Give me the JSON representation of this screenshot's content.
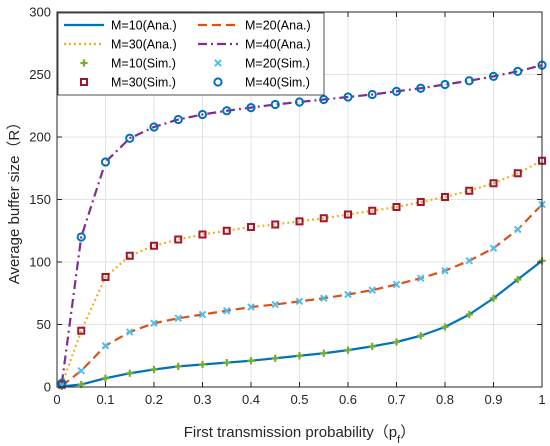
{
  "chart_data": {
    "type": "line",
    "title": "",
    "xlabel": "First transmission probability（p",
    "xlabel_sub": "f",
    "xlabel_close": "）",
    "ylabel": "Average buffer size（R）",
    "xlim": [
      0,
      1
    ],
    "ylim": [
      0,
      300
    ],
    "xticks": [
      "0",
      "0.1",
      "0.2",
      "0.3",
      "0.4",
      "0.5",
      "0.6",
      "0.7",
      "0.8",
      "0.9",
      "1"
    ],
    "yticks": [
      "0",
      "50",
      "100",
      "150",
      "200",
      "250",
      "300"
    ],
    "grid": true,
    "legend_position": "top-left",
    "x": [
      0.01,
      0.05,
      0.1,
      0.15,
      0.2,
      0.25,
      0.3,
      0.35,
      0.4,
      0.45,
      0.5,
      0.55,
      0.6,
      0.65,
      0.7,
      0.75,
      0.8,
      0.85,
      0.9,
      0.95,
      1.0
    ],
    "series": [
      {
        "name": "M=10(Ana.)",
        "kind": "line",
        "style": "solid",
        "color": "#0072BD",
        "values": [
          0.5,
          2,
          7,
          11,
          14,
          16.5,
          18,
          19.5,
          21,
          23,
          25,
          27,
          29.5,
          32.5,
          36,
          41,
          48,
          58,
          71,
          86,
          101
        ]
      },
      {
        "name": "M=20(Ana.)",
        "kind": "line",
        "style": "dashed",
        "color": "#D95319",
        "values": [
          1,
          13,
          33,
          44,
          51,
          55,
          58,
          61,
          64,
          66,
          68.5,
          71,
          74,
          77.5,
          82,
          87,
          93,
          101,
          111,
          126,
          146
        ]
      },
      {
        "name": "M=30(Ana.)",
        "kind": "line",
        "style": "dotted",
        "color": "#EDB120",
        "values": [
          2,
          45,
          88,
          105,
          113,
          118,
          122,
          125,
          128,
          130,
          132.5,
          135,
          138,
          141,
          144,
          148,
          152,
          157,
          163,
          171,
          181
        ]
      },
      {
        "name": "M=40(Ana.)",
        "kind": "line",
        "style": "dashdot",
        "color": "#7E2F8E",
        "values": [
          3,
          120,
          180,
          199,
          208,
          214,
          218,
          221,
          223.5,
          226,
          228,
          230,
          232,
          234,
          236.5,
          239,
          242,
          245,
          248.5,
          252.5,
          257.5
        ]
      },
      {
        "name": "M=10(Sim.)",
        "kind": "marker",
        "marker": "plus",
        "color": "#77AC30",
        "values": [
          0.5,
          2,
          7,
          11,
          14,
          16.5,
          18,
          19.5,
          21,
          23,
          25,
          27,
          29.5,
          32.5,
          36,
          41,
          48,
          58,
          71,
          86,
          101
        ]
      },
      {
        "name": "M=20(Sim.)",
        "kind": "marker",
        "marker": "x",
        "color": "#4DBEEE",
        "values": [
          1,
          13,
          33,
          44,
          51,
          55,
          58,
          61,
          64,
          66,
          68.5,
          71,
          74,
          77.5,
          82,
          87,
          93,
          101,
          111,
          126,
          146
        ]
      },
      {
        "name": "M=30(Sim.)",
        "kind": "marker",
        "marker": "square",
        "color": "#A2142F",
        "values": [
          2,
          45,
          88,
          105,
          113,
          118,
          122,
          125,
          128,
          130,
          132.5,
          135,
          138,
          141,
          144,
          148,
          152,
          157,
          163,
          171,
          181
        ]
      },
      {
        "name": "M=40(Sim.)",
        "kind": "marker",
        "marker": "circle",
        "color": "#0072BD",
        "values": [
          3,
          120,
          180,
          199,
          208,
          214,
          218,
          221,
          223.5,
          226,
          228,
          230,
          232,
          234,
          236.5,
          239,
          242,
          245,
          248.5,
          252.5,
          257.5
        ]
      }
    ],
    "legend_order": [
      0,
      1,
      2,
      3,
      4,
      5,
      6,
      7
    ]
  }
}
